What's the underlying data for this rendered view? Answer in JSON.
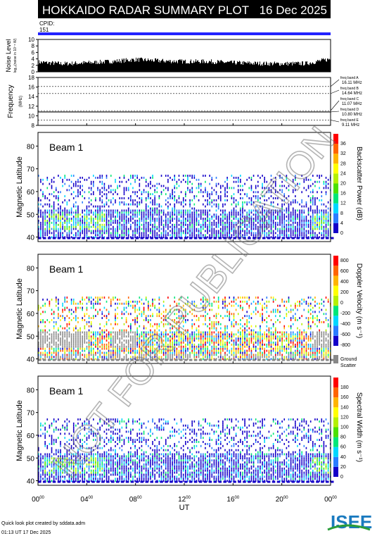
{
  "header": {
    "title": "HOKKAIDO RADAR SUMMARY PLOT",
    "date": "16 Dec 2025",
    "cpid_label": "CPID:",
    "cpid_value": "151"
  },
  "watermark": "NOT FOR PUBLICATION",
  "footer": {
    "credit_line1": "Quick look plot created by sddata.adm",
    "credit_line2": "01:13 UT 17 Dec 2025",
    "logo_text": "ISEE"
  },
  "chart_data": [
    {
      "type": "area",
      "name": "noise",
      "ylabel": "Noise Level",
      "ylabel_sub": "log₁₀(noise in 10⁻⁶ W)",
      "ylim": [
        0,
        10
      ],
      "yticks": [
        "0",
        "2",
        "4",
        "6",
        "8",
        "10"
      ],
      "x": [
        0,
        2,
        4,
        6,
        8,
        10,
        12,
        14,
        16,
        18,
        20,
        22,
        24
      ],
      "values": [
        3.0,
        2.5,
        2.8,
        3.2,
        3.8,
        3.4,
        3.2,
        3.2,
        2.8,
        2.6,
        2.5,
        2.6,
        4.0
      ]
    },
    {
      "type": "line",
      "name": "frequency",
      "ylabel": "Frequency",
      "yunit": "(MHz)",
      "ylim": [
        8,
        18
      ],
      "yticks": [
        "8",
        "10",
        "12",
        "14",
        "16",
        "18"
      ],
      "bands": [
        {
          "label": "freq band A",
          "value_text": "16.11 MHz",
          "mhz": 16.11
        },
        {
          "label": "freq band B",
          "value_text": "14.64 MHz",
          "mhz": 14.64
        },
        {
          "label": "freq band C",
          "value_text": "11.07 MHz",
          "mhz": 11.07
        },
        {
          "label": "freq band D",
          "value_text": "10.80 MHz",
          "mhz": 10.8
        },
        {
          "label": "freq band E",
          "value_text": "9.11 MHz",
          "mhz": 9.11
        }
      ],
      "active_mhz": 10.8
    },
    {
      "type": "heatmap",
      "name": "power",
      "beam_label": "Beam  1",
      "ylabel": "Magnetic Latitude",
      "yticks": [
        "40",
        "50",
        "60",
        "70",
        "80"
      ],
      "ylim": [
        38,
        86
      ],
      "colorbar_label": "Backscatter Power (dB)",
      "colorbar_ticks": [
        "0",
        "4",
        "8",
        "12",
        "16",
        "20",
        "24",
        "28",
        "32",
        "36"
      ],
      "colors": [
        "#1400c8",
        "#2a7dff",
        "#00d7ff",
        "#00e678",
        "#4be000",
        "#b4f000",
        "#ffff00",
        "#ffb400",
        "#ff6400",
        "#ff0000"
      ]
    },
    {
      "type": "heatmap",
      "name": "velocity",
      "beam_label": "Beam  1",
      "ylabel": "Magnetic Latitude",
      "yticks": [
        "40",
        "50",
        "60",
        "70",
        "80"
      ],
      "ylim": [
        38,
        86
      ],
      "colorbar_label": "Doppler Velocity (m s⁻¹)",
      "colorbar_ticks": [
        "800",
        "600",
        "400",
        "200",
        "0",
        "-200",
        "-400",
        "-600",
        "-800"
      ],
      "colors": [
        "#ff0000",
        "#ff6400",
        "#ffb400",
        "#ffff00",
        "#b4f000",
        "#00e678",
        "#00d7ff",
        "#2a7dff",
        "#1400c8"
      ],
      "ground_scatter_label": "Ground Scatter",
      "ground_scatter_color": "#888888"
    },
    {
      "type": "heatmap",
      "name": "width",
      "beam_label": "Beam  1",
      "ylabel": "Magnetic Latitude",
      "yticks": [
        "40",
        "50",
        "60",
        "70",
        "80"
      ],
      "ylim": [
        38,
        86
      ],
      "colorbar_label": "Spectral Width (m s⁻¹)",
      "colorbar_ticks": [
        "0",
        "20",
        "40",
        "60",
        "80",
        "100",
        "120",
        "140",
        "160",
        "180"
      ],
      "colors": [
        "#1400c8",
        "#2a7dff",
        "#00d7ff",
        "#00e678",
        "#4be000",
        "#b4f000",
        "#ffff00",
        "#ffb400",
        "#ff6400",
        "#ff0000"
      ]
    }
  ],
  "xaxis": {
    "label": "UT",
    "ticks": [
      "00",
      "04",
      "08",
      "12",
      "16",
      "20",
      "00"
    ],
    "tick_sup": "00",
    "xlim": [
      0,
      24
    ]
  }
}
